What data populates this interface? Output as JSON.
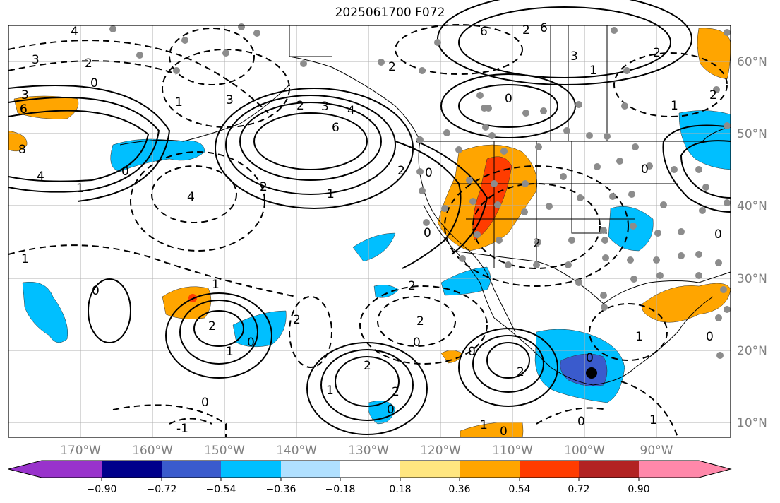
{
  "title": "2025061700 F072",
  "lat_ticks": [
    "60°N",
    "50°N",
    "40°N",
    "30°N",
    "20°N",
    "10°N"
  ],
  "lon_ticks": [
    "170°W",
    "160°W",
    "150°W",
    "140°W",
    "130°W",
    "120°W",
    "110°W",
    "100°W",
    "90°W"
  ],
  "colorbar": {
    "ticks": [
      "−0.90",
      "−0.72",
      "−0.54",
      "−0.36",
      "−0.18",
      "0.18",
      "0.36",
      "0.54",
      "0.72",
      "0.90"
    ],
    "colors": [
      "#9933cc",
      "#00008b",
      "#3a5bcd",
      "#00bfff",
      "#b0e0ff",
      "#ffffff",
      "#ffe680",
      "#ffa500",
      "#ff3c00",
      "#b22222",
      "#ff88aa"
    ]
  },
  "contour_labels": [
    "4",
    "3",
    "2",
    "0",
    "3",
    "6",
    "6",
    "8",
    "4",
    "1",
    "0",
    "1",
    "4",
    "3",
    "2",
    "2",
    "6",
    "4",
    "3",
    "2",
    "1",
    "0",
    "2",
    "0",
    "6",
    "3",
    "2",
    "1",
    "0",
    "2",
    "2",
    "1",
    "1",
    "2",
    "0",
    "2",
    "1",
    "2",
    "0",
    "0",
    "2",
    "0",
    "1",
    "2",
    "2",
    "0",
    "0",
    "0",
    "1",
    "0",
    "2",
    "1",
    "0",
    "1",
    "1",
    "0",
    "0",
    "0",
    "6",
    "2"
  ],
  "colors": {
    "positive_orange": "#ffa500",
    "positive_red": "#ff3c00",
    "negative_blue": "#00bfff",
    "negative_dark": "#3a5bcd",
    "grid": "#b0b0b0",
    "station_dot": "#8c8c8c",
    "contour": "#000000"
  }
}
